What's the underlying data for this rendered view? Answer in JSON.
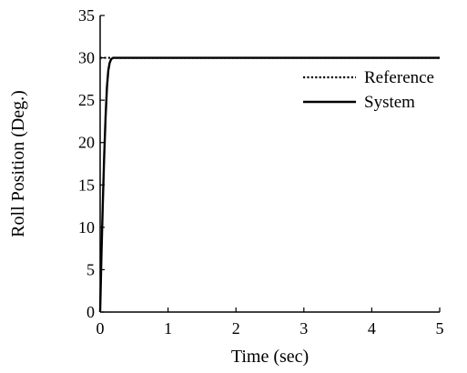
{
  "chart_data": {
    "type": "line",
    "title": "",
    "xlabel": "Time (sec)",
    "ylabel": "Roll Position (Deg.)",
    "xlim": [
      0,
      5
    ],
    "ylim": [
      0,
      35
    ],
    "xticks": [
      0,
      1,
      2,
      3,
      4,
      5
    ],
    "yticks": [
      0,
      5,
      10,
      15,
      20,
      25,
      30,
      35
    ],
    "grid": false,
    "legend_position": "top-right",
    "series": [
      {
        "name": "Reference",
        "style": "dotted",
        "color": "#000000",
        "x": [
          0,
          5
        ],
        "y": [
          30,
          30
        ]
      },
      {
        "name": "System",
        "style": "solid",
        "color": "#000000",
        "x": [
          0,
          0.02,
          0.04,
          0.06,
          0.08,
          0.1,
          0.12,
          0.14,
          0.16,
          0.18,
          0.2,
          0.25,
          0.3,
          1,
          2,
          3,
          4,
          5
        ],
        "y": [
          0,
          7,
          13,
          18.5,
          23,
          26.5,
          28.5,
          29.4,
          29.8,
          29.95,
          30,
          30,
          30,
          30,
          30,
          30,
          30,
          30
        ]
      }
    ]
  }
}
